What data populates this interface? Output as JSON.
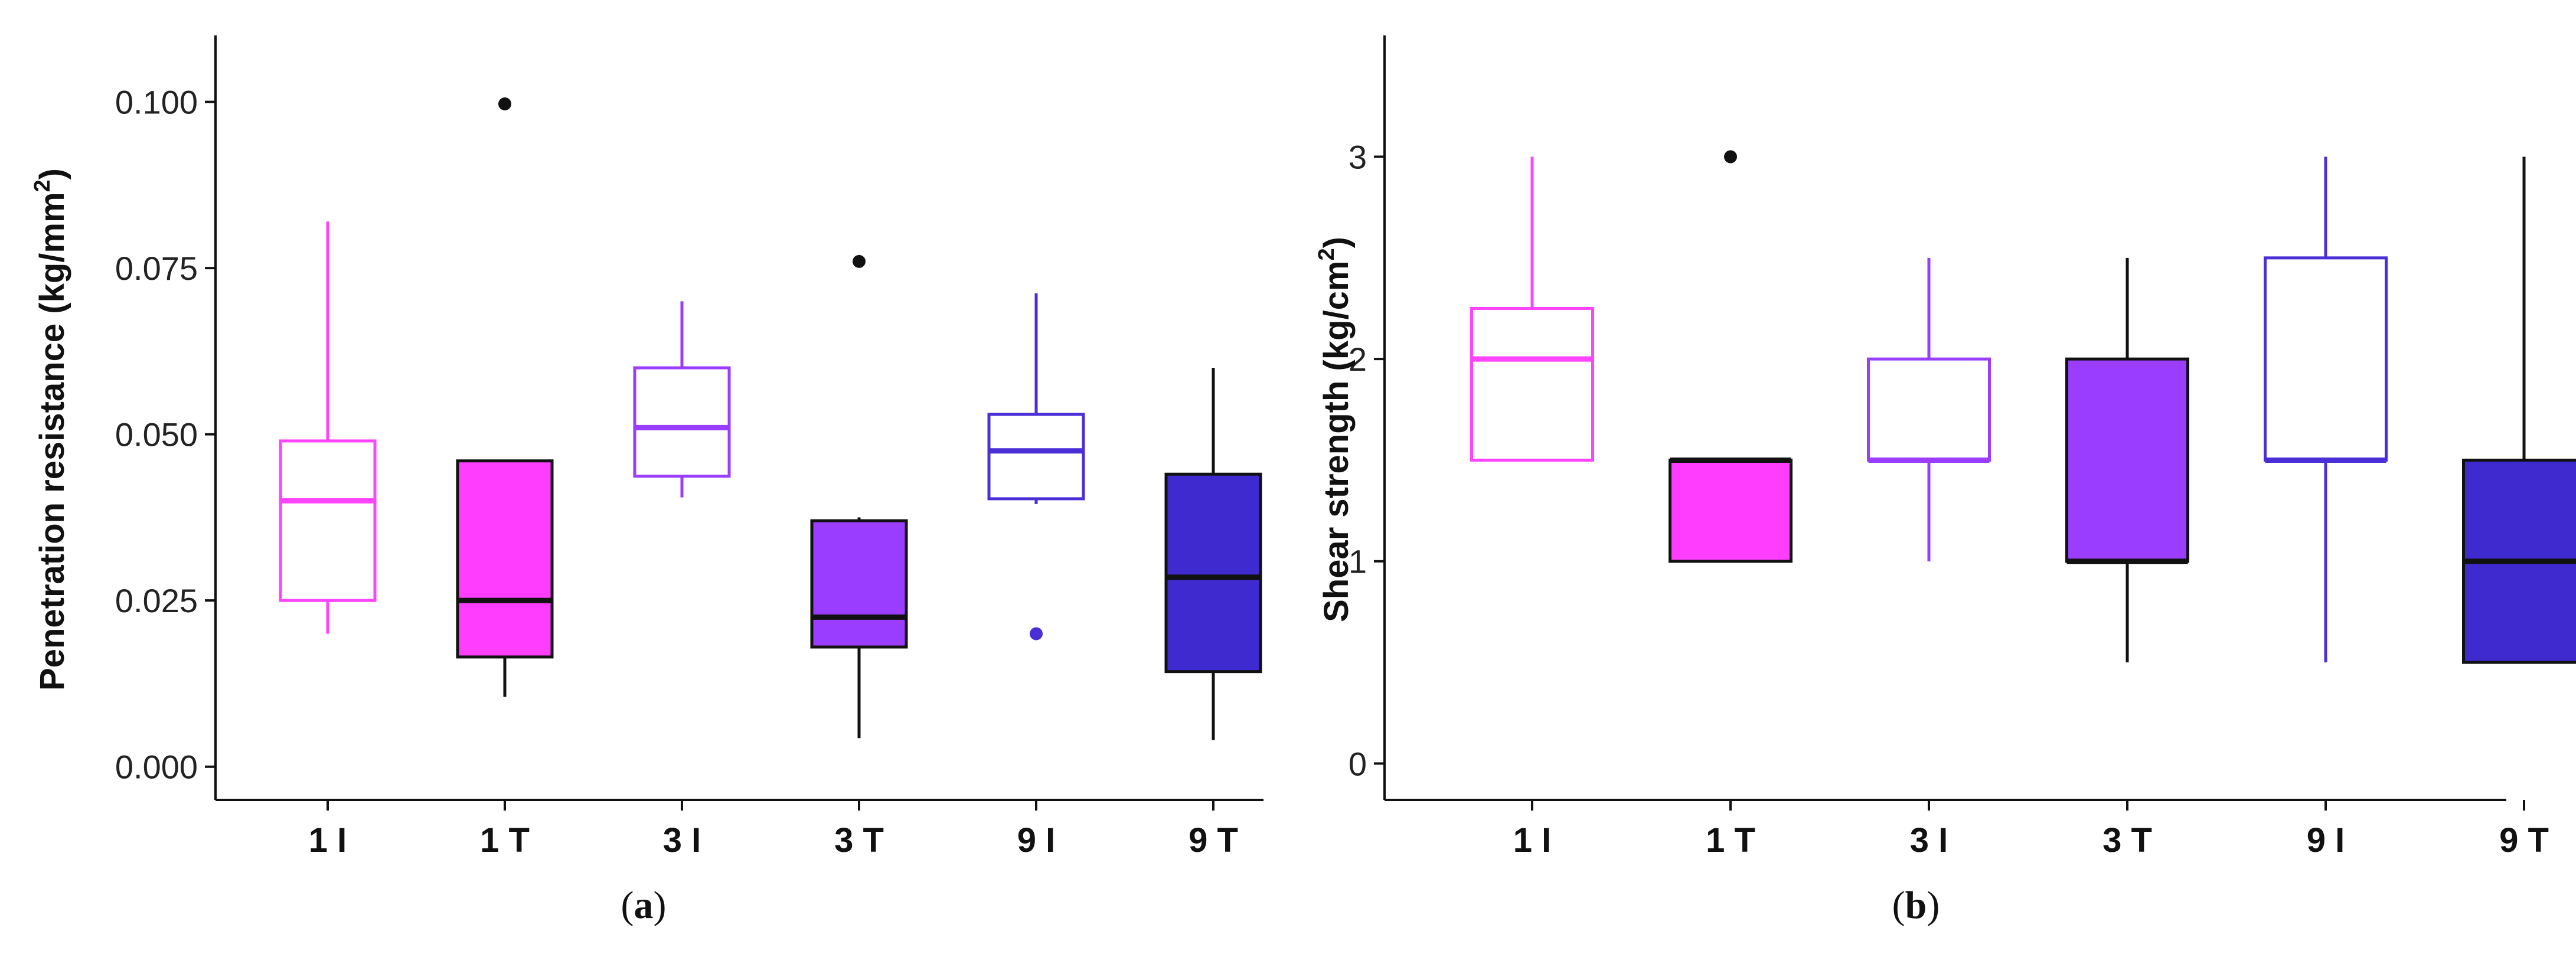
{
  "chart_data": [
    {
      "type": "box",
      "panel_label": "a",
      "ylabel_main": "Penetration resistance (kg/mm",
      "ylabel_sup": "2",
      "ylabel_end": ")",
      "ylim": [
        -0.005,
        0.11
      ],
      "yticks": [
        0.0,
        0.025,
        0.05,
        0.075,
        0.1
      ],
      "ytick_labels": [
        "0.000",
        "0.025",
        "0.050",
        "0.075",
        "0.100"
      ],
      "categories": [
        "1 I",
        "1 T",
        "3 I",
        "3 T",
        "9 I",
        "9 T"
      ],
      "boxes": [
        {
          "category": "1 I",
          "min": 0.02,
          "q1": 0.025,
          "median": 0.04,
          "q3": 0.049,
          "max": 0.082,
          "outliers": [],
          "fill": "#ffffff",
          "stroke": "#ff44ff",
          "median_color": "#ff44ff"
        },
        {
          "category": "1 T",
          "min": 0.0105,
          "q1": 0.0165,
          "median": 0.025,
          "q3": 0.046,
          "max": 0.046,
          "outliers": [
            0.0997
          ],
          "fill": "#ff3dff",
          "stroke": "#111111",
          "median_color": "#111111"
        },
        {
          "category": "3 I",
          "min": 0.0405,
          "q1": 0.0437,
          "median": 0.051,
          "q3": 0.06,
          "max": 0.07,
          "outliers": [],
          "fill": "#ffffff",
          "stroke": "#9b3dff",
          "median_color": "#9b3dff"
        },
        {
          "category": "3 T",
          "min": 0.0043,
          "q1": 0.018,
          "median": 0.0225,
          "q3": 0.037,
          "max": 0.0375,
          "outliers": [
            0.076
          ],
          "fill": "#9b3dff",
          "stroke": "#111111",
          "median_color": "#111111"
        },
        {
          "category": "9 I",
          "min": 0.0395,
          "q1": 0.0403,
          "median": 0.0475,
          "q3": 0.053,
          "max": 0.0712,
          "outliers": [
            0.02
          ],
          "fill": "#ffffff",
          "stroke": "#4a2fd6",
          "median_color": "#4a2fd6"
        },
        {
          "category": "9 T",
          "min": 0.004,
          "q1": 0.0143,
          "median": 0.0285,
          "q3": 0.044,
          "max": 0.06,
          "outliers": [],
          "fill": "#3f2ad0",
          "stroke": "#111111",
          "median_color": "#111111"
        }
      ]
    },
    {
      "type": "box",
      "panel_label": "b",
      "ylabel_main": "Shear strength (kg/cm",
      "ylabel_sup": "2",
      "ylabel_end": ")",
      "ylim": [
        -0.18,
        3.6
      ],
      "yticks": [
        0,
        1,
        2,
        3
      ],
      "ytick_labels": [
        "0",
        "1",
        "2",
        "3"
      ],
      "categories": [
        "1 I",
        "1 T",
        "3 I",
        "3 T",
        "9 I",
        "9 T"
      ],
      "boxes": [
        {
          "category": "1 I",
          "min": 1.5,
          "q1": 1.5,
          "median": 2.0,
          "q3": 2.25,
          "max": 3.0,
          "outliers": [],
          "fill": "#ffffff",
          "stroke": "#ff44ff",
          "median_color": "#ff44ff"
        },
        {
          "category": "1 T",
          "min": 1.0,
          "q1": 1.0,
          "median": 1.5,
          "q3": 1.5,
          "max": 1.5,
          "outliers": [
            3.0
          ],
          "fill": "#ff3dff",
          "stroke": "#111111",
          "median_color": "#111111"
        },
        {
          "category": "3 I",
          "min": 1.0,
          "q1": 1.5,
          "median": 1.5,
          "q3": 2.0,
          "max": 2.5,
          "outliers": [],
          "fill": "#ffffff",
          "stroke": "#9b3dff",
          "median_color": "#9b3dff"
        },
        {
          "category": "3 T",
          "min": 0.5,
          "q1": 1.0,
          "median": 1.0,
          "q3": 2.0,
          "max": 2.5,
          "outliers": [],
          "fill": "#9b3dff",
          "stroke": "#111111",
          "median_color": "#111111"
        },
        {
          "category": "9 I",
          "min": 0.5,
          "q1": 1.5,
          "median": 1.5,
          "q3": 2.5,
          "max": 3.0,
          "outliers": [],
          "fill": "#ffffff",
          "stroke": "#4a2fd6",
          "median_color": "#4a2fd6"
        },
        {
          "category": "9 T",
          "min": 0.5,
          "q1": 0.5,
          "median": 1.0,
          "q3": 1.5,
          "max": 3.0,
          "outliers": [],
          "fill": "#3f2ad0",
          "stroke": "#111111",
          "median_color": "#111111"
        }
      ]
    }
  ]
}
